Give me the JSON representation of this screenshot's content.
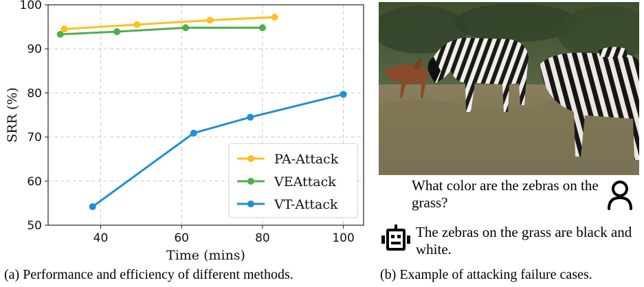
{
  "chart_data": {
    "type": "line",
    "title": "",
    "xlabel": "Time (mins)",
    "ylabel": "SRR (%)",
    "xlim": [
      27,
      105
    ],
    "ylim": [
      50,
      100
    ],
    "xticks": [
      40,
      60,
      80,
      100
    ],
    "yticks": [
      50,
      60,
      70,
      80,
      90,
      100
    ],
    "grid": true,
    "legend_position": "bottom-right",
    "series": [
      {
        "name": "PA-Attack",
        "color": "#ffbf1f",
        "x": [
          31,
          49,
          67,
          83
        ],
        "y": [
          94.5,
          95.5,
          96.5,
          97.2
        ]
      },
      {
        "name": "VEAttack",
        "color": "#4caf50",
        "x": [
          30,
          44,
          61,
          80
        ],
        "y": [
          93.3,
          93.9,
          94.8,
          94.8
        ]
      },
      {
        "name": "VT-Attack",
        "color": "#1f8fd6",
        "x": [
          38,
          63,
          77,
          100
        ],
        "y": [
          54.2,
          70.9,
          74.5,
          79.7
        ]
      }
    ]
  },
  "captions": {
    "left": "(a) Performance and efficiency of different methods.",
    "right": "(b) Example of attacking failure cases."
  },
  "example": {
    "question": "What color are the zebras on the grass?",
    "answer": "The zebras on the grass are black and white.",
    "user_icon": "user-icon",
    "bot_icon": "robot-icon"
  }
}
